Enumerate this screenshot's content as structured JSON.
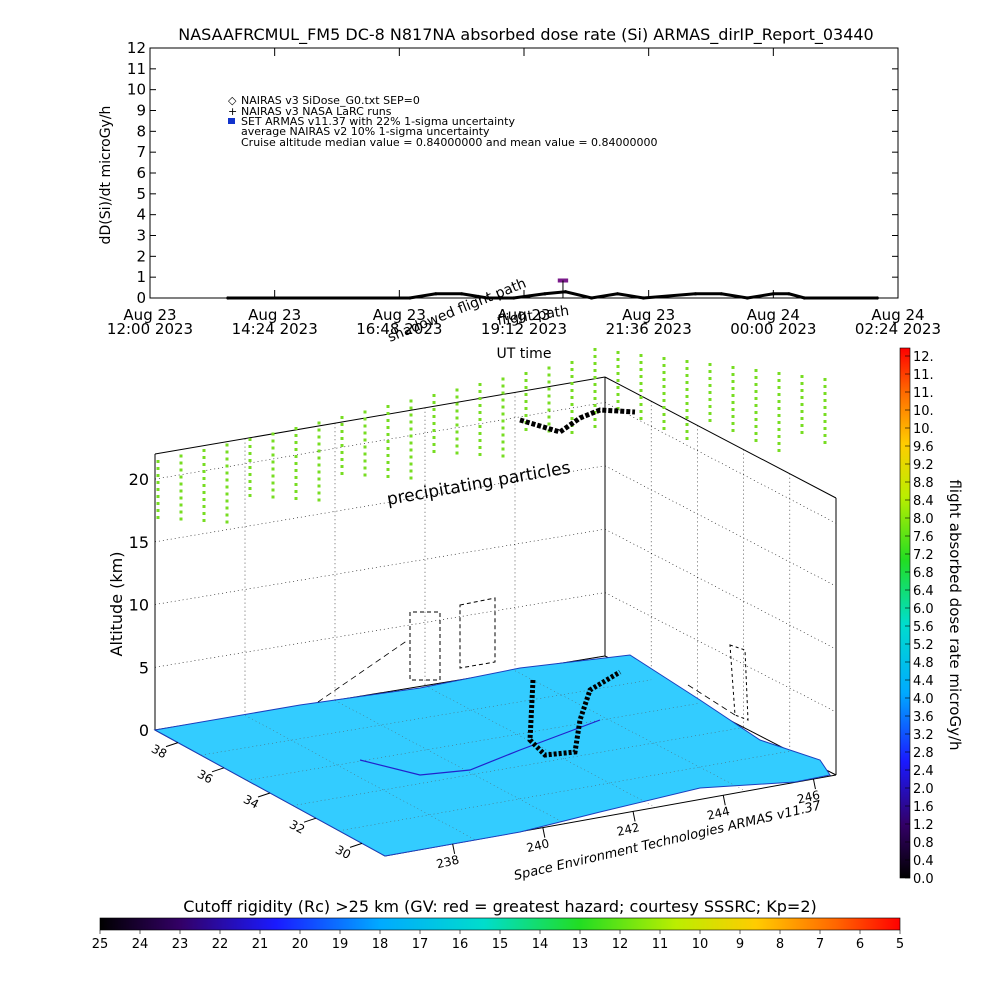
{
  "title": "NASAAFRCMUL_FM5 DC-8   N817NA absorbed dose rate (Si) ARMAS_dirIP_Report_03440",
  "top_panel": {
    "ylabel": "dD(Si)/dt microGy/h",
    "xlabel": "UT time",
    "legend": [
      "NAIRAS v3 SiDose_G0.txt SEP=0",
      "NAIRAS v3 NASA LaRC runs",
      "SET ARMAS v11.37 with 22% 1-sigma uncertainty",
      "average NAIRAS v2 10% 1-sigma uncertainty",
      "Cruise altitude median value = 0.84000000 and mean value = 0.84000000"
    ],
    "x_tick_labels": [
      [
        "Aug 23",
        "12:00 2023"
      ],
      [
        "Aug 23",
        "14:24 2023"
      ],
      [
        "Aug 23",
        "16:48 2023"
      ],
      [
        "Aug 23",
        "19:12 2023"
      ],
      [
        "Aug 23",
        "21:36 2023"
      ],
      [
        "Aug 24",
        "00:00 2023"
      ],
      [
        "Aug 24",
        "02:24 2023"
      ]
    ],
    "overlay_labels": [
      "shadowed flight path",
      "flight path"
    ]
  },
  "chart_data": [
    {
      "type": "line",
      "title": "NASAAFRCMUL_FM5 DC-8   N817NA absorbed dose rate (Si) ARMAS_dirIP_Report_03440",
      "xlabel": "UT time",
      "ylabel": "dD(Si)/dt microGy/h",
      "x_range_hours_since_start": [
        0,
        14.4
      ],
      "ylim": [
        0,
        12
      ],
      "y_ticks": [
        0,
        1,
        2,
        3,
        4,
        5,
        6,
        7,
        8,
        9,
        10,
        11,
        12
      ],
      "series": [
        {
          "name": "NAIRAS v3 SiDose_G0.txt SEP=0",
          "x": [
            1.5,
            5.0,
            5.5,
            6.0,
            6.5,
            7.0,
            7.3,
            7.6,
            8.0,
            8.5,
            9.0,
            9.5,
            10.5,
            11.0,
            11.5,
            12.0,
            12.3,
            12.6,
            14.0
          ],
          "values": [
            0.0,
            0.0,
            0.2,
            0.2,
            0.0,
            0.0,
            0.1,
            0.2,
            0.3,
            0.0,
            0.2,
            0.0,
            0.2,
            0.2,
            0.0,
            0.2,
            0.2,
            0.0,
            0.0
          ]
        },
        {
          "name": "SET ARMAS v11.37 with 22% 1-sigma uncertainty",
          "x": [
            7.85,
            8.05
          ],
          "values": [
            0.84,
            0.84
          ]
        }
      ],
      "median": 0.84,
      "mean": 0.84
    },
    {
      "type": "scatter",
      "title": "",
      "zlabel": "Altitude (km)",
      "z_ticks": [
        0,
        5,
        10,
        15,
        20
      ],
      "latitude_ticks": [
        38,
        36,
        34,
        32,
        30
      ],
      "longitude_ticks": [
        238,
        240,
        242,
        244,
        246
      ],
      "overlay_labels": [
        "precipitating particles"
      ],
      "footer": "Space Environment Technologies ARMAS v11.37",
      "colorbar": {
        "label": "flight absorbed dose rate microGy/h",
        "tick_labels": [
          "12.",
          "11.",
          "11.",
          "10.",
          "10.",
          "9.6",
          "9.2",
          "8.8",
          "8.4",
          "8.0",
          "7.6",
          "7.2",
          "6.8",
          "6.4",
          "6.0",
          "5.6",
          "5.2",
          "4.8",
          "4.4",
          "4.0",
          "3.6",
          "3.2",
          "2.8",
          "2.4",
          "2.0",
          "1.6",
          "1.2",
          "0.8",
          "0.4",
          "0.0"
        ]
      }
    },
    {
      "type": "heatmap",
      "title": "Cutoff rigidity (Rc) >25 km (GV: red = greatest hazard; courtesy SSSRC; Kp=2)",
      "tick_labels": [
        "25",
        "24",
        "23",
        "22",
        "21",
        "20",
        "19",
        "18",
        "17",
        "16",
        "15",
        "14",
        "13",
        "12",
        "11",
        "10",
        "9",
        "8",
        "7",
        "6",
        "5"
      ]
    }
  ],
  "bottom": {
    "title": "Cutoff rigidity (Rc) >25 km (GV: red = greatest hazard; courtesy SSSRC; Kp=2)"
  },
  "colors": {
    "map_fill": "#33ccff",
    "precip": "#77dd22",
    "track": "#000000",
    "sea_line": "#2222cc"
  }
}
